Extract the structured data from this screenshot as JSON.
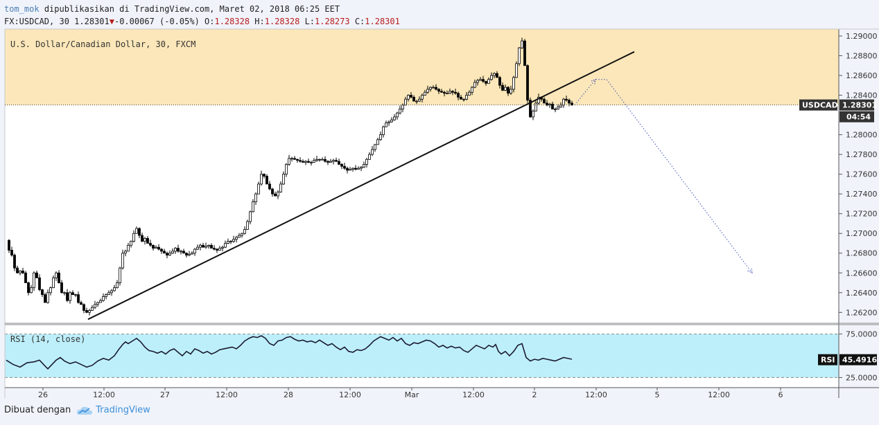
{
  "header": {
    "author": "tom_mok",
    "published_text": "dipublikasikan di TradingView.com, Maret 02, 2018 06:25 EET",
    "symbol": "FX:USDCAD, 30",
    "last": "1.28301",
    "change": "-0.00067 (-0.05%)",
    "o_label": "O:",
    "o_value": "1.28328",
    "h_label": "H:",
    "h_value": "1.28328",
    "l_label": "L:",
    "l_value": "1.28273",
    "c_label": "C:",
    "c_value": "1.28301"
  },
  "footer": {
    "made_with": "Dibuat dengan",
    "brand": "TradingView",
    "brand_icon": "tradingview-cloud-icon"
  },
  "chart_data": {
    "type": "candlestick",
    "title": "U.S. Dollar/Canadian Dollar, 30, FXCM",
    "price_axis": {
      "ylim": [
        1.2609,
        1.2907
      ],
      "ticks": [
        "1.29000",
        "1.28800",
        "1.28600",
        "1.28400",
        "1.28000",
        "1.27800",
        "1.27600",
        "1.27400",
        "1.27200",
        "1.27000",
        "1.26800",
        "1.26600",
        "1.26400",
        "1.26200"
      ]
    },
    "last_price_label": "USDCAD",
    "last_price": "1.28301",
    "countdown": "04:54",
    "x_tick_labels": [
      "26",
      "12:00",
      "27",
      "12:00",
      "28",
      "12:00",
      "Mar",
      "12:00",
      "2",
      "12:00",
      "5",
      "12:00",
      "6"
    ],
    "price_series": [
      [
        0,
        1.2693
      ],
      [
        4,
        1.2683
      ],
      [
        8,
        1.2678
      ],
      [
        12,
        1.2665
      ],
      [
        16,
        1.266
      ],
      [
        20,
        1.2662
      ],
      [
        24,
        1.266
      ],
      [
        28,
        1.265
      ],
      [
        32,
        1.264
      ],
      [
        36,
        1.2645
      ],
      [
        40,
        1.266
      ],
      [
        44,
        1.2655
      ],
      [
        48,
        1.2643
      ],
      [
        52,
        1.2638
      ],
      [
        56,
        1.263
      ],
      [
        60,
        1.264
      ],
      [
        64,
        1.2645
      ],
      [
        68,
        1.2655
      ],
      [
        72,
        1.266
      ],
      [
        76,
        1.265
      ],
      [
        80,
        1.264
      ],
      [
        84,
        1.264
      ],
      [
        88,
        1.2632
      ],
      [
        92,
        1.264
      ],
      [
        96,
        1.2638
      ],
      [
        100,
        1.2638
      ],
      [
        104,
        1.263
      ],
      [
        108,
        1.2628
      ],
      [
        112,
        1.2622
      ],
      [
        116,
        1.262
      ],
      [
        120,
        1.2622
      ],
      [
        124,
        1.2625
      ],
      [
        128,
        1.2628
      ],
      [
        132,
        1.263
      ],
      [
        136,
        1.2632
      ],
      [
        140,
        1.2636
      ],
      [
        144,
        1.2638
      ],
      [
        148,
        1.264
      ],
      [
        152,
        1.2642
      ],
      [
        156,
        1.2645
      ],
      [
        160,
        1.265
      ],
      [
        164,
        1.2665
      ],
      [
        168,
        1.268
      ],
      [
        172,
        1.2682
      ],
      [
        176,
        1.2688
      ],
      [
        180,
        1.2692
      ],
      [
        184,
        1.27
      ],
      [
        188,
        1.2705
      ],
      [
        192,
        1.2698
      ],
      [
        196,
        1.2692
      ],
      [
        200,
        1.2695
      ],
      [
        204,
        1.269
      ],
      [
        208,
        1.2688
      ],
      [
        212,
        1.2685
      ],
      [
        216,
        1.2686
      ],
      [
        220,
        1.2684
      ],
      [
        224,
        1.2682
      ],
      [
        228,
        1.268
      ],
      [
        232,
        1.2678
      ],
      [
        236,
        1.268
      ],
      [
        240,
        1.2682
      ],
      [
        244,
        1.2685
      ],
      [
        248,
        1.2682
      ],
      [
        252,
        1.2682
      ],
      [
        256,
        1.268
      ],
      [
        260,
        1.2678
      ],
      [
        264,
        1.2679
      ],
      [
        268,
        1.268
      ],
      [
        272,
        1.2684
      ],
      [
        276,
        1.2686
      ],
      [
        280,
        1.2688
      ],
      [
        284,
        1.2686
      ],
      [
        288,
        1.2687
      ],
      [
        292,
        1.2688
      ],
      [
        296,
        1.2685
      ],
      [
        300,
        1.2684
      ],
      [
        304,
        1.2683
      ],
      [
        308,
        1.2685
      ],
      [
        312,
        1.2686
      ],
      [
        316,
        1.269
      ],
      [
        320,
        1.2692
      ],
      [
        324,
        1.2692
      ],
      [
        328,
        1.2694
      ],
      [
        332,
        1.2696
      ],
      [
        336,
        1.2698
      ],
      [
        340,
        1.27
      ],
      [
        344,
        1.2704
      ],
      [
        348,
        1.2712
      ],
      [
        352,
        1.2722
      ],
      [
        356,
        1.2732
      ],
      [
        360,
        1.274
      ],
      [
        364,
        1.275
      ],
      [
        368,
        1.276
      ],
      [
        372,
        1.2758
      ],
      [
        376,
        1.275
      ],
      [
        380,
        1.2745
      ],
      [
        384,
        1.274
      ],
      [
        388,
        1.2738
      ],
      [
        392,
        1.2742
      ],
      [
        396,
        1.275
      ],
      [
        400,
        1.276
      ],
      [
        404,
        1.277
      ],
      [
        408,
        1.2776
      ],
      [
        412,
        1.2776
      ],
      [
        416,
        1.2775
      ],
      [
        420,
        1.2774
      ],
      [
        424,
        1.2773
      ],
      [
        428,
        1.2772
      ],
      [
        432,
        1.2773
      ],
      [
        436,
        1.2772
      ],
      [
        440,
        1.2772
      ],
      [
        444,
        1.2774
      ],
      [
        448,
        1.2775
      ],
      [
        452,
        1.2775
      ],
      [
        456,
        1.2775
      ],
      [
        460,
        1.2773
      ],
      [
        464,
        1.2772
      ],
      [
        468,
        1.2773
      ],
      [
        472,
        1.2774
      ],
      [
        476,
        1.2773
      ],
      [
        480,
        1.277
      ],
      [
        484,
        1.2768
      ],
      [
        488,
        1.2766
      ],
      [
        492,
        1.2764
      ],
      [
        496,
        1.2765
      ],
      [
        500,
        1.2766
      ],
      [
        504,
        1.2765
      ],
      [
        508,
        1.2766
      ],
      [
        512,
        1.2767
      ],
      [
        516,
        1.277
      ],
      [
        520,
        1.2775
      ],
      [
        524,
        1.278
      ],
      [
        528,
        1.2785
      ],
      [
        532,
        1.279
      ],
      [
        536,
        1.2795
      ],
      [
        540,
        1.28
      ],
      [
        544,
        1.2808
      ],
      [
        548,
        1.2812
      ],
      [
        552,
        1.2813
      ],
      [
        556,
        1.2815
      ],
      [
        560,
        1.2818
      ],
      [
        564,
        1.2822
      ],
      [
        568,
        1.2826
      ],
      [
        572,
        1.283
      ],
      [
        576,
        1.2836
      ],
      [
        580,
        1.284
      ],
      [
        584,
        1.2838
      ],
      [
        588,
        1.2834
      ],
      [
        592,
        1.2834
      ],
      [
        596,
        1.2836
      ],
      [
        600,
        1.284
      ],
      [
        604,
        1.2843
      ],
      [
        608,
        1.2846
      ],
      [
        612,
        1.2848
      ],
      [
        616,
        1.2848
      ],
      [
        620,
        1.2846
      ],
      [
        624,
        1.2844
      ],
      [
        628,
        1.2843
      ],
      [
        632,
        1.2842
      ],
      [
        636,
        1.2842
      ],
      [
        640,
        1.2844
      ],
      [
        644,
        1.2843
      ],
      [
        648,
        1.2842
      ],
      [
        652,
        1.2838
      ],
      [
        656,
        1.2836
      ],
      [
        660,
        1.2836
      ],
      [
        664,
        1.284
      ],
      [
        668,
        1.2843
      ],
      [
        672,
        1.2848
      ],
      [
        676,
        1.2853
      ],
      [
        680,
        1.2855
      ],
      [
        684,
        1.2856
      ],
      [
        688,
        1.2854
      ],
      [
        692,
        1.2852
      ],
      [
        696,
        1.2856
      ],
      [
        700,
        1.286
      ],
      [
        704,
        1.2862
      ],
      [
        708,
        1.2858
      ],
      [
        712,
        1.285
      ],
      [
        716,
        1.2845
      ],
      [
        720,
        1.2848
      ],
      [
        724,
        1.2842
      ],
      [
        728,
        1.2846
      ],
      [
        732,
        1.2858
      ],
      [
        736,
        1.2872
      ],
      [
        740,
        1.2888
      ],
      [
        744,
        1.2895
      ],
      [
        748,
        1.287
      ],
      [
        752,
        1.2835
      ],
      [
        756,
        1.2818
      ],
      [
        760,
        1.2824
      ],
      [
        764,
        1.2832
      ],
      [
        768,
        1.2838
      ],
      [
        772,
        1.2836
      ],
      [
        776,
        1.2832
      ],
      [
        780,
        1.283
      ],
      [
        784,
        1.2831
      ],
      [
        788,
        1.2826
      ],
      [
        792,
        1.2826
      ],
      [
        796,
        1.2828
      ],
      [
        800,
        1.283
      ],
      [
        804,
        1.2836
      ],
      [
        808,
        1.2835
      ],
      [
        812,
        1.2832
      ],
      [
        816,
        1.283
      ]
    ],
    "trendline": {
      "start": [
        118,
        1.2613
      ],
      "end": [
        906,
        1.2884
      ],
      "color": "#111111"
    },
    "projection": {
      "points": [
        [
          820,
          1.283
        ],
        [
          850,
          1.2856
        ],
        [
          866,
          1.2856
        ],
        [
          1076,
          1.266
        ]
      ],
      "color": "#3f51b5",
      "style": "dotted"
    },
    "highlight_zone": {
      "from": 1.283,
      "to": 1.2907,
      "color": "#fbe7b9"
    },
    "rsi": {
      "title": "RSI (14, close)",
      "levels": [
        75.0,
        25.0
      ],
      "tick_labels": [
        "75.0000",
        "25.0000"
      ],
      "ylim": [
        15,
        85
      ],
      "last_label": "RSI",
      "last_value": "45.4916",
      "fill_color": "#bdeffb",
      "series": [
        [
          0,
          45
        ],
        [
          10,
          40
        ],
        [
          20,
          37
        ],
        [
          30,
          42
        ],
        [
          40,
          43
        ],
        [
          48,
          45
        ],
        [
          55,
          39
        ],
        [
          60,
          35
        ],
        [
          66,
          40
        ],
        [
          72,
          45
        ],
        [
          78,
          48
        ],
        [
          84,
          44
        ],
        [
          92,
          41
        ],
        [
          100,
          43
        ],
        [
          108,
          40
        ],
        [
          116,
          37
        ],
        [
          124,
          39
        ],
        [
          132,
          44
        ],
        [
          140,
          47
        ],
        [
          148,
          45
        ],
        [
          156,
          50
        ],
        [
          162,
          57
        ],
        [
          168,
          63
        ],
        [
          172,
          66
        ],
        [
          176,
          64
        ],
        [
          182,
          67
        ],
        [
          188,
          70
        ],
        [
          194,
          66
        ],
        [
          200,
          60
        ],
        [
          206,
          56
        ],
        [
          212,
          55
        ],
        [
          218,
          53
        ],
        [
          224,
          55
        ],
        [
          230,
          52
        ],
        [
          236,
          56
        ],
        [
          242,
          58
        ],
        [
          248,
          54
        ],
        [
          254,
          50
        ],
        [
          260,
          55
        ],
        [
          266,
          52
        ],
        [
          272,
          58
        ],
        [
          278,
          56
        ],
        [
          284,
          53
        ],
        [
          290,
          55
        ],
        [
          296,
          52
        ],
        [
          302,
          54
        ],
        [
          308,
          57
        ],
        [
          314,
          58
        ],
        [
          320,
          59
        ],
        [
          326,
          60
        ],
        [
          332,
          58
        ],
        [
          338,
          62
        ],
        [
          344,
          67
        ],
        [
          350,
          70
        ],
        [
          356,
          72
        ],
        [
          362,
          71
        ],
        [
          368,
          73
        ],
        [
          374,
          70
        ],
        [
          380,
          64
        ],
        [
          386,
          62
        ],
        [
          392,
          67
        ],
        [
          398,
          68
        ],
        [
          404,
          71
        ],
        [
          410,
          72
        ],
        [
          416,
          69
        ],
        [
          422,
          67
        ],
        [
          428,
          68
        ],
        [
          434,
          66
        ],
        [
          440,
          67
        ],
        [
          446,
          65
        ],
        [
          452,
          68
        ],
        [
          458,
          65
        ],
        [
          464,
          62
        ],
        [
          470,
          64
        ],
        [
          476,
          60
        ],
        [
          482,
          57
        ],
        [
          488,
          60
        ],
        [
          494,
          55
        ],
        [
          500,
          54
        ],
        [
          506,
          57
        ],
        [
          512,
          56
        ],
        [
          518,
          58
        ],
        [
          524,
          62
        ],
        [
          530,
          67
        ],
        [
          536,
          70
        ],
        [
          540,
          72
        ],
        [
          546,
          70
        ],
        [
          552,
          68
        ],
        [
          558,
          71
        ],
        [
          564,
          67
        ],
        [
          570,
          70
        ],
        [
          576,
          64
        ],
        [
          582,
          62
        ],
        [
          588,
          65
        ],
        [
          594,
          64
        ],
        [
          600,
          66
        ],
        [
          606,
          68
        ],
        [
          612,
          67
        ],
        [
          618,
          64
        ],
        [
          624,
          60
        ],
        [
          630,
          62
        ],
        [
          636,
          59
        ],
        [
          642,
          61
        ],
        [
          648,
          59
        ],
        [
          654,
          60
        ],
        [
          660,
          56
        ],
        [
          666,
          54
        ],
        [
          672,
          58
        ],
        [
          678,
          62
        ],
        [
          684,
          60
        ],
        [
          690,
          58
        ],
        [
          696,
          62
        ],
        [
          702,
          60
        ],
        [
          706,
          63
        ],
        [
          710,
          55
        ],
        [
          714,
          52
        ],
        [
          720,
          55
        ],
        [
          726,
          50
        ],
        [
          732,
          55
        ],
        [
          738,
          62
        ],
        [
          744,
          64
        ],
        [
          750,
          48
        ],
        [
          756,
          44
        ],
        [
          762,
          46
        ],
        [
          768,
          45
        ],
        [
          774,
          47
        ],
        [
          780,
          46
        ],
        [
          786,
          45
        ],
        [
          792,
          44
        ],
        [
          798,
          46
        ],
        [
          804,
          48
        ],
        [
          810,
          47
        ],
        [
          816,
          46
        ]
      ]
    }
  }
}
